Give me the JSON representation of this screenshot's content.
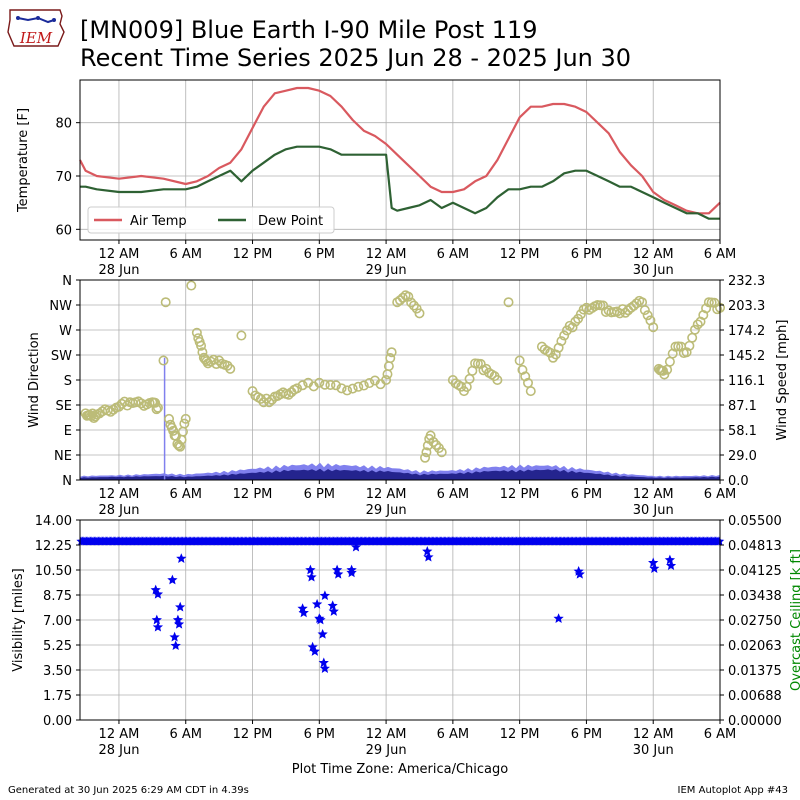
{
  "header": {
    "title_line1": "[MN009] Blue Earth I-90 Mile Post 119",
    "title_line2": "Recent Time Series 2025 Jun 28 - 2025 Jun 30",
    "logo_text": "IEM"
  },
  "footer": {
    "generated": "Generated at 30 Jun 2025 6:29 AM CDT in 4.39s",
    "app": "IEM Autoplot App #43"
  },
  "colors": {
    "air_temp": "#d9595f",
    "dew_point": "#2e6133",
    "wind_dir": "#bcbc78",
    "wind_gust": "#8080ee",
    "wind_speed": "#24248e",
    "visibility": "#0000ee",
    "ceiling_label": "#008800",
    "grid": "#b0b0b0"
  },
  "time_axis": {
    "tick_labels": [
      "12 AM",
      "6 AM",
      "12 PM",
      "6 PM",
      "12 AM",
      "6 AM",
      "12 PM",
      "6 PM",
      "12 AM",
      "6 AM"
    ],
    "tick_hours": [
      0,
      6,
      12,
      18,
      24,
      30,
      36,
      42,
      48,
      54
    ],
    "date_labels": [
      {
        "hour": 0,
        "text": "28 Jun"
      },
      {
        "hour": 24,
        "text": "29 Jun"
      },
      {
        "hour": 48,
        "text": "30 Jun"
      }
    ],
    "xlabel": "Plot Time Zone: America/Chicago"
  },
  "chart_data": [
    {
      "type": "line",
      "panel": "temperature",
      "ylabel": "Temperature [F]",
      "ylim": [
        58,
        88
      ],
      "yticks": [
        60,
        70,
        80
      ],
      "xlim_hours": [
        -3.5,
        54
      ],
      "grid": true,
      "legend": "lower-left",
      "series": [
        {
          "name": "Air Temp",
          "x_hours": [
            -3.5,
            -3,
            -2,
            0,
            2,
            4,
            6,
            7,
            8,
            9,
            10,
            11,
            12,
            13,
            14,
            15,
            16,
            17,
            18,
            19,
            20,
            21,
            22,
            23,
            24,
            25,
            26,
            27,
            28,
            29,
            30,
            31,
            32,
            33,
            34,
            35,
            36,
            37,
            38,
            39,
            40,
            41,
            42,
            43,
            44,
            45,
            46,
            47,
            48,
            49,
            50,
            51,
            52,
            53,
            54
          ],
          "y": [
            73,
            71,
            70,
            69.5,
            70,
            69.5,
            68.5,
            69,
            70,
            71.5,
            72.5,
            75,
            79,
            83,
            85.5,
            86,
            86.5,
            86.5,
            86,
            85,
            83,
            80.5,
            78.5,
            77.5,
            76,
            74,
            72,
            70,
            68,
            67,
            67,
            67.5,
            69,
            70,
            73,
            77,
            81,
            83,
            83,
            83.5,
            83.5,
            83,
            82,
            80,
            78,
            74.5,
            72,
            70,
            67,
            65.5,
            64.5,
            63.5,
            63,
            63,
            65
          ]
        },
        {
          "name": "Dew Point",
          "x_hours": [
            -3.5,
            -3,
            -2,
            0,
            2,
            4,
            6,
            7,
            8,
            9,
            10,
            11,
            12,
            13,
            14,
            15,
            16,
            17,
            18,
            19,
            20,
            21,
            22,
            23,
            24,
            24.5,
            25,
            26,
            27,
            28,
            29,
            30,
            31,
            32,
            33,
            34,
            35,
            36,
            37,
            38,
            39,
            40,
            41,
            42,
            43,
            44,
            45,
            46,
            47,
            48,
            49,
            50,
            51,
            52,
            53,
            54
          ],
          "y": [
            68,
            68,
            67.5,
            67,
            67,
            67.5,
            67.5,
            68,
            69,
            70,
            71,
            69,
            71,
            72.5,
            74,
            75,
            75.5,
            75.5,
            75.5,
            75,
            74,
            74,
            74,
            74,
            74,
            64,
            63.5,
            64,
            64.5,
            65.5,
            64,
            65,
            64,
            63,
            64,
            66,
            67.5,
            67.5,
            68,
            68,
            69,
            70.5,
            71,
            71,
            70,
            69,
            68,
            68,
            67,
            66,
            65,
            64,
            63,
            63,
            62,
            62
          ]
        }
      ]
    },
    {
      "type": "scatter",
      "panel": "wind",
      "ylabel": "Wind Direction",
      "y2label": "Wind Speed [mph]",
      "ylim": [
        0,
        360
      ],
      "y2lim": [
        0,
        232.3
      ],
      "yticks": [
        "N",
        "NE",
        "E",
        "SE",
        "S",
        "SW",
        "W",
        "NW",
        "N"
      ],
      "y2ticks": [
        "0.0",
        "29.0",
        "58.1",
        "87.1",
        "116.1",
        "145.2",
        "174.2",
        "203.3",
        "232.3"
      ],
      "xlim_hours": [
        -3.5,
        54
      ],
      "grid": true,
      "direction_points": [
        {
          "x": -3,
          "y": 120
        },
        {
          "x": -2.5,
          "y": 115
        },
        {
          "x": -2,
          "y": 118
        },
        {
          "x": -1,
          "y": 125
        },
        {
          "x": 0,
          "y": 132
        },
        {
          "x": 1,
          "y": 140
        },
        {
          "x": 2,
          "y": 138
        },
        {
          "x": 3,
          "y": 140
        },
        {
          "x": 3.5,
          "y": 130
        },
        {
          "x": 4,
          "y": 215
        },
        {
          "x": 4.2,
          "y": 320
        },
        {
          "x": 4.5,
          "y": 110
        },
        {
          "x": 5,
          "y": 80
        },
        {
          "x": 5.5,
          "y": 60
        },
        {
          "x": 6,
          "y": 110
        },
        {
          "x": 6.5,
          "y": 350
        },
        {
          "x": 7,
          "y": 265
        },
        {
          "x": 7.5,
          "y": 230
        },
        {
          "x": 8,
          "y": 210
        },
        {
          "x": 9,
          "y": 215
        },
        {
          "x": 10,
          "y": 200
        },
        {
          "x": 11,
          "y": 260
        },
        {
          "x": 12,
          "y": 160
        },
        {
          "x": 13,
          "y": 140
        },
        {
          "x": 14,
          "y": 150
        },
        {
          "x": 15,
          "y": 155
        },
        {
          "x": 16,
          "y": 165
        },
        {
          "x": 18,
          "y": 175
        },
        {
          "x": 20,
          "y": 165
        },
        {
          "x": 22,
          "y": 170
        },
        {
          "x": 24,
          "y": 180
        },
        {
          "x": 24.5,
          "y": 230
        },
        {
          "x": 25,
          "y": 320
        },
        {
          "x": 26,
          "y": 330
        },
        {
          "x": 27,
          "y": 300
        },
        {
          "x": 27.5,
          "y": 40
        },
        {
          "x": 28,
          "y": 80
        },
        {
          "x": 29,
          "y": 50
        },
        {
          "x": 30,
          "y": 180
        },
        {
          "x": 31,
          "y": 160
        },
        {
          "x": 32,
          "y": 210
        },
        {
          "x": 33,
          "y": 200
        },
        {
          "x": 34,
          "y": 180
        },
        {
          "x": 35,
          "y": 320
        },
        {
          "x": 36,
          "y": 215
        },
        {
          "x": 37,
          "y": 160
        },
        {
          "x": 38,
          "y": 240
        },
        {
          "x": 39,
          "y": 220
        },
        {
          "x": 40,
          "y": 260
        },
        {
          "x": 41,
          "y": 285
        },
        {
          "x": 42,
          "y": 310
        },
        {
          "x": 43,
          "y": 315
        },
        {
          "x": 44,
          "y": 305
        },
        {
          "x": 45,
          "y": 300
        },
        {
          "x": 46,
          "y": 310
        },
        {
          "x": 47,
          "y": 320
        },
        {
          "x": 48,
          "y": 275
        },
        {
          "x": 48.5,
          "y": 200
        },
        {
          "x": 49,
          "y": 190
        },
        {
          "x": 50,
          "y": 240
        },
        {
          "x": 51,
          "y": 230
        },
        {
          "x": 52,
          "y": 280
        },
        {
          "x": 53,
          "y": 320
        },
        {
          "x": 54,
          "y": 310
        }
      ],
      "gust_spike": {
        "x": 4.1,
        "y": 220
      },
      "speed_profile_x": [
        -3.5,
        0,
        4,
        6,
        9,
        12,
        15,
        18,
        21,
        24,
        27,
        30,
        33,
        36,
        39,
        42,
        45,
        48,
        51,
        54
      ],
      "speed_profile_y": [
        3,
        4,
        5,
        4,
        6,
        9,
        12,
        13,
        12,
        11,
        7,
        8,
        11,
        12,
        13,
        9,
        5,
        3,
        3,
        4
      ],
      "gust_profile_y": [
        5,
        6,
        8,
        7,
        10,
        14,
        18,
        20,
        18,
        16,
        11,
        12,
        16,
        18,
        18,
        13,
        8,
        5,
        5,
        6
      ]
    },
    {
      "type": "scatter",
      "panel": "visibility",
      "ylabel": "Visibility [miles]",
      "y2label": "Overcast Ceiling [k ft]",
      "ylim": [
        0,
        14
      ],
      "y2lim": [
        0,
        0.055
      ],
      "yticks": [
        "0.00",
        "1.75",
        "3.50",
        "5.25",
        "7.00",
        "8.75",
        "10.50",
        "12.25",
        "14.00"
      ],
      "y2ticks": [
        "0.00000",
        "0.00688",
        "0.01375",
        "0.02063",
        "0.02750",
        "0.03438",
        "0.04125",
        "0.04813",
        "0.05500"
      ],
      "xlim_hours": [
        -3.5,
        54
      ],
      "grid": true,
      "baseline_visibility": 12.5,
      "points": [
        {
          "x": 3.3,
          "y": 9.1
        },
        {
          "x": 3.5,
          "y": 8.8
        },
        {
          "x": 3.4,
          "y": 7.0
        },
        {
          "x": 3.5,
          "y": 6.5
        },
        {
          "x": 4.8,
          "y": 9.8
        },
        {
          "x": 5.0,
          "y": 5.8
        },
        {
          "x": 5.1,
          "y": 5.2
        },
        {
          "x": 5.3,
          "y": 7.0
        },
        {
          "x": 5.4,
          "y": 6.7
        },
        {
          "x": 5.5,
          "y": 7.9
        },
        {
          "x": 5.6,
          "y": 11.3
        },
        {
          "x": 16.5,
          "y": 7.8
        },
        {
          "x": 16.6,
          "y": 7.5
        },
        {
          "x": 17.2,
          "y": 10.5
        },
        {
          "x": 17.3,
          "y": 10.0
        },
        {
          "x": 17.4,
          "y": 5.1
        },
        {
          "x": 17.6,
          "y": 4.8
        },
        {
          "x": 17.8,
          "y": 8.1
        },
        {
          "x": 18.0,
          "y": 7.1
        },
        {
          "x": 18.1,
          "y": 7.0
        },
        {
          "x": 18.3,
          "y": 6.0
        },
        {
          "x": 18.4,
          "y": 4.0
        },
        {
          "x": 18.5,
          "y": 3.6
        },
        {
          "x": 18.5,
          "y": 8.7
        },
        {
          "x": 19.2,
          "y": 8.0
        },
        {
          "x": 19.3,
          "y": 7.6
        },
        {
          "x": 19.6,
          "y": 10.5
        },
        {
          "x": 19.7,
          "y": 10.2
        },
        {
          "x": 20.9,
          "y": 10.5
        },
        {
          "x": 20.9,
          "y": 10.3
        },
        {
          "x": 21.3,
          "y": 12.1
        },
        {
          "x": 27.7,
          "y": 11.8
        },
        {
          "x": 27.8,
          "y": 11.4
        },
        {
          "x": 39.5,
          "y": 7.1
        },
        {
          "x": 41.3,
          "y": 10.4
        },
        {
          "x": 41.4,
          "y": 10.2
        },
        {
          "x": 48.0,
          "y": 11.0
        },
        {
          "x": 48.1,
          "y": 10.6
        },
        {
          "x": 49.5,
          "y": 11.2
        },
        {
          "x": 49.6,
          "y": 10.8
        }
      ]
    }
  ]
}
